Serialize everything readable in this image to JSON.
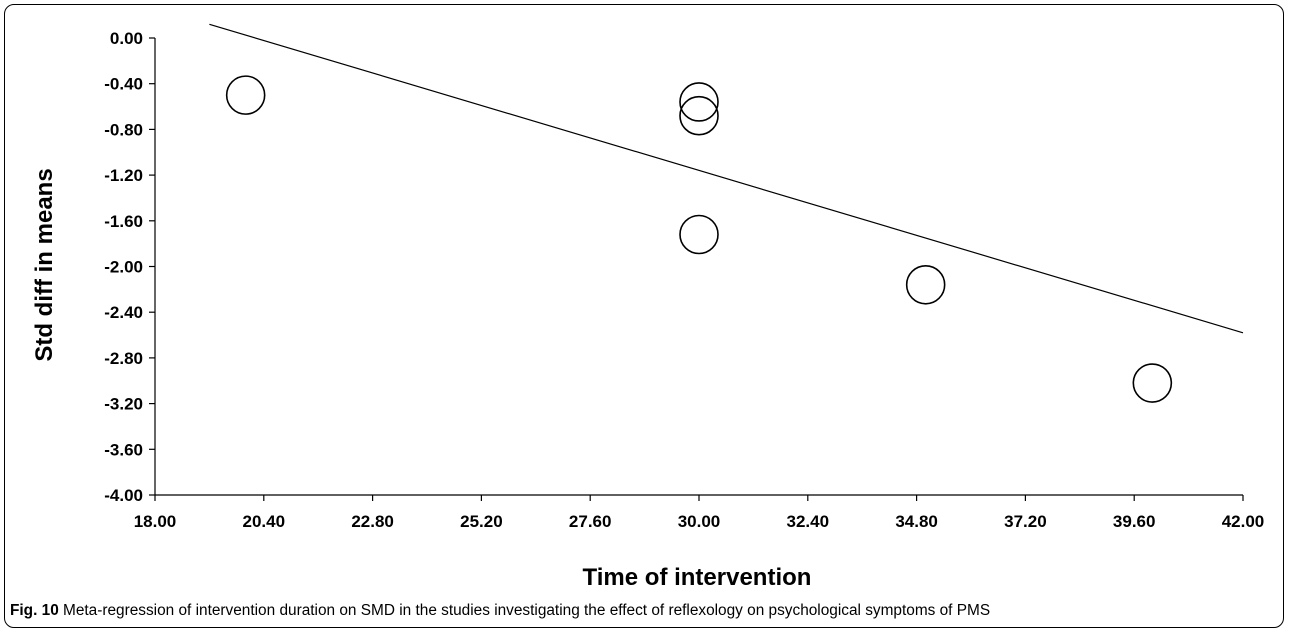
{
  "chart_data": {
    "type": "scatter",
    "xlabel": "Time of intervention",
    "ylabel": "Std diff in means",
    "xlim": [
      18.0,
      42.0
    ],
    "ylim": [
      -4.0,
      0.0
    ],
    "x_ticks": [
      "18.00",
      "20.40",
      "22.80",
      "25.20",
      "27.60",
      "30.00",
      "32.40",
      "34.80",
      "37.20",
      "39.60",
      "42.00"
    ],
    "y_ticks": [
      "0.00",
      "-0.40",
      "-0.80",
      "-1.20",
      "-1.60",
      "-2.00",
      "-2.40",
      "-2.80",
      "-3.20",
      "-3.60",
      "-4.00"
    ],
    "points": [
      {
        "x": 20.0,
        "y": -0.5
      },
      {
        "x": 30.0,
        "y": -0.56
      },
      {
        "x": 30.0,
        "y": -0.68
      },
      {
        "x": 30.0,
        "y": -1.72
      },
      {
        "x": 35.0,
        "y": -2.16
      },
      {
        "x": 40.0,
        "y": -3.02
      }
    ],
    "regression_line": {
      "x": [
        19.2,
        42.0
      ],
      "y": [
        0.12,
        -2.58
      ]
    },
    "marker": "open circle",
    "grid": false
  },
  "caption": {
    "label": "Fig. 10",
    "text": " Meta-regression of intervention duration on SMD in the studies investigating the effect of reflexology on psychological symptoms of PMS"
  }
}
